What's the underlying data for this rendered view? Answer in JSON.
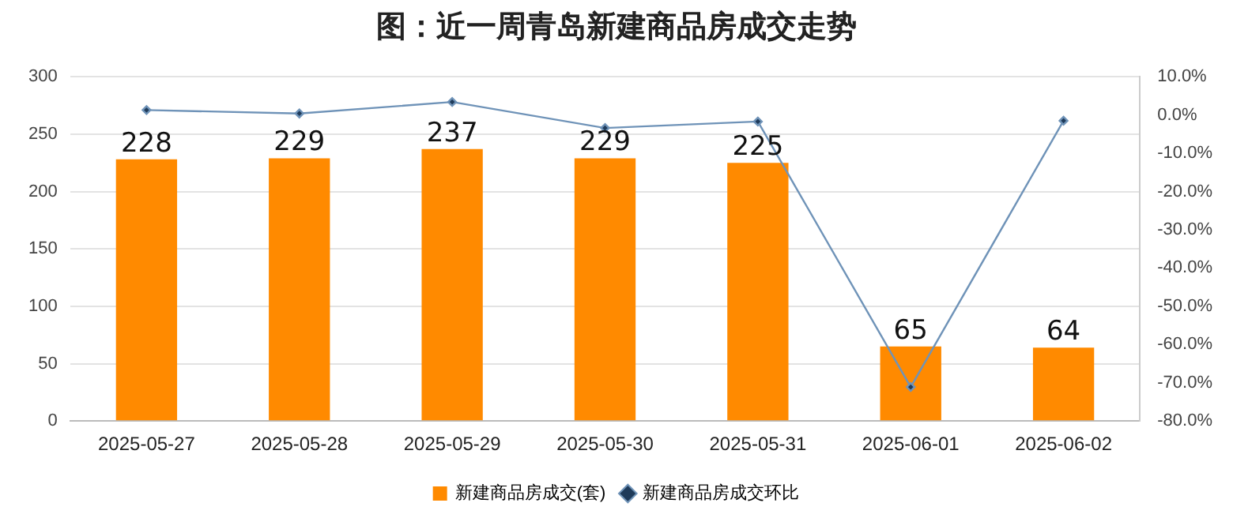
{
  "chart_data": {
    "type": "bar",
    "title": "图：近一周青岛新建商品房成交走势",
    "categories": [
      "2025-05-27",
      "2025-05-28",
      "2025-05-29",
      "2025-05-30",
      "2025-05-31",
      "2025-06-01",
      "2025-06-02"
    ],
    "series": [
      {
        "name": "新建商品房成交(套)",
        "color": "#ff8a00",
        "values": [
          228,
          229,
          237,
          229,
          225,
          65,
          64
        ],
        "data_labels": true
      },
      {
        "name": "新建商品房成交环比",
        "type": "line",
        "axis": "y2",
        "color": "#6f93b8",
        "marker": "diamond",
        "values": [
          1.3,
          0.4,
          3.4,
          -3.4,
          -1.7,
          -71.1,
          -1.5
        ]
      }
    ],
    "ylim": [
      0,
      300
    ],
    "yticks": [
      0,
      50,
      100,
      150,
      200,
      250,
      300
    ],
    "y2lim": [
      -80,
      10
    ],
    "y2ticks": [
      {
        "value": 10,
        "label": "10.0%"
      },
      {
        "value": 0,
        "label": "0.0%"
      },
      {
        "value": -10,
        "label": "-10.0%"
      },
      {
        "value": -20,
        "label": "-20.0%"
      },
      {
        "value": -30,
        "label": "-30.0%"
      },
      {
        "value": -40,
        "label": "-40.0%"
      },
      {
        "value": -50,
        "label": "-50.0%"
      },
      {
        "value": -60,
        "label": "-60.0%"
      },
      {
        "value": -70,
        "label": "-70.0%"
      },
      {
        "value": -80,
        "label": "-80.0%"
      }
    ],
    "grid": "y",
    "legend": "bottom"
  }
}
